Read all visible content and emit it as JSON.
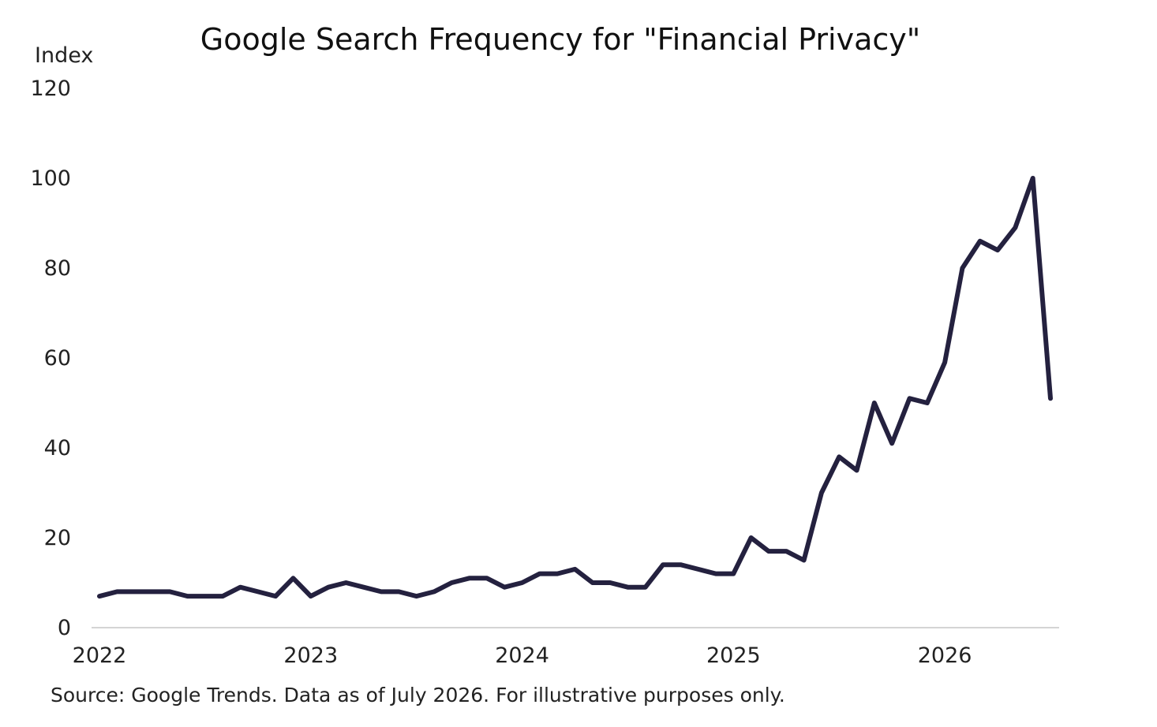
{
  "chart_data": {
    "type": "line",
    "title": "Google Search Frequency for \"Financial Privacy\"",
    "ylabel": "Index",
    "xlabel": "",
    "ylim": [
      0,
      120
    ],
    "yticks": [
      "0",
      "20",
      "40",
      "60",
      "80",
      "100",
      "120"
    ],
    "xticks": [
      "2022",
      "2023",
      "2024",
      "2025",
      "2026"
    ],
    "grid": false,
    "line_color": "#24213f",
    "x": [
      "2022-01",
      "2022-02",
      "2022-03",
      "2022-04",
      "2022-05",
      "2022-06",
      "2022-07",
      "2022-08",
      "2022-09",
      "2022-10",
      "2022-11",
      "2022-12",
      "2023-01",
      "2023-02",
      "2023-03",
      "2023-04",
      "2023-05",
      "2023-06",
      "2023-07",
      "2023-08",
      "2023-09",
      "2023-10",
      "2023-11",
      "2023-12",
      "2024-01",
      "2024-02",
      "2024-03",
      "2024-04",
      "2024-05",
      "2024-06",
      "2024-07",
      "2024-08",
      "2024-09",
      "2024-10",
      "2024-11",
      "2024-12",
      "2025-01",
      "2025-02",
      "2025-03",
      "2025-04",
      "2025-05",
      "2025-06",
      "2025-07",
      "2025-08",
      "2025-09",
      "2025-10",
      "2025-11",
      "2025-12",
      "2026-01",
      "2026-02",
      "2026-03",
      "2026-04",
      "2026-05",
      "2026-06",
      "2026-07"
    ],
    "series": [
      {
        "values": [
          7,
          8,
          8,
          8,
          8,
          7,
          7,
          7,
          9,
          8,
          7,
          11,
          7,
          9,
          10,
          9,
          8,
          8,
          7,
          8,
          10,
          11,
          11,
          9,
          10,
          12,
          12,
          13,
          10,
          10,
          9,
          9,
          14,
          14,
          13,
          12,
          12,
          20,
          17,
          17,
          15,
          30,
          38,
          35,
          50,
          41,
          51,
          50,
          59,
          80,
          86,
          84,
          89,
          100,
          51
        ]
      }
    ],
    "source": "Source: Google Trends. Data as of July 2026. For illustrative purposes only."
  }
}
